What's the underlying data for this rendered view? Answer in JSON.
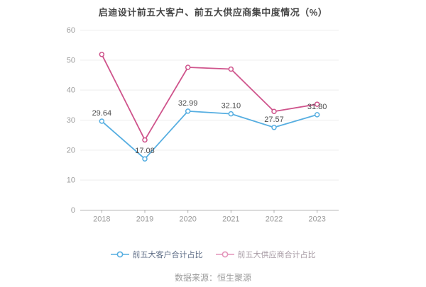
{
  "title": "启迪设计前五大客户、前五大供应商集中度情况（%）",
  "source_note": "数据来源：恒生聚源",
  "colors": {
    "customer_line": "#56aee1",
    "supplier_line": "#cf548c",
    "grid_line": "#ededed",
    "axis_line": "#b0b0b0",
    "axis_label": "#9b9b9b",
    "data_label": "#4d4d4d"
  },
  "chart_data": {
    "type": "line",
    "categories": [
      "2018",
      "2019",
      "2020",
      "2021",
      "2022",
      "2023"
    ],
    "series": [
      {
        "name": "前五大客户合计占比",
        "color": "#56aee1",
        "values": [
          29.64,
          17.08,
          32.99,
          32.1,
          27.57,
          31.8
        ],
        "data_labels": [
          "29.64",
          "17.08",
          "32.99",
          "32.10",
          "27.57",
          "31.80"
        ],
        "show_labels": true
      },
      {
        "name": "前五大供应商合计占比",
        "color": "#cf548c",
        "values": [
          51.9,
          23.4,
          47.6,
          47.0,
          32.9,
          35.3
        ],
        "data_labels": null,
        "show_labels": false
      }
    ],
    "title": "启迪设计前五大客户、前五大供应商集中度情况（%）",
    "xlabel": "",
    "ylabel": "",
    "ylim": [
      0,
      60
    ],
    "yticks": [
      0,
      10,
      20,
      30,
      40,
      50,
      60
    ],
    "grid": true,
    "legend_position": "bottom",
    "marker": "hollow-circle"
  }
}
